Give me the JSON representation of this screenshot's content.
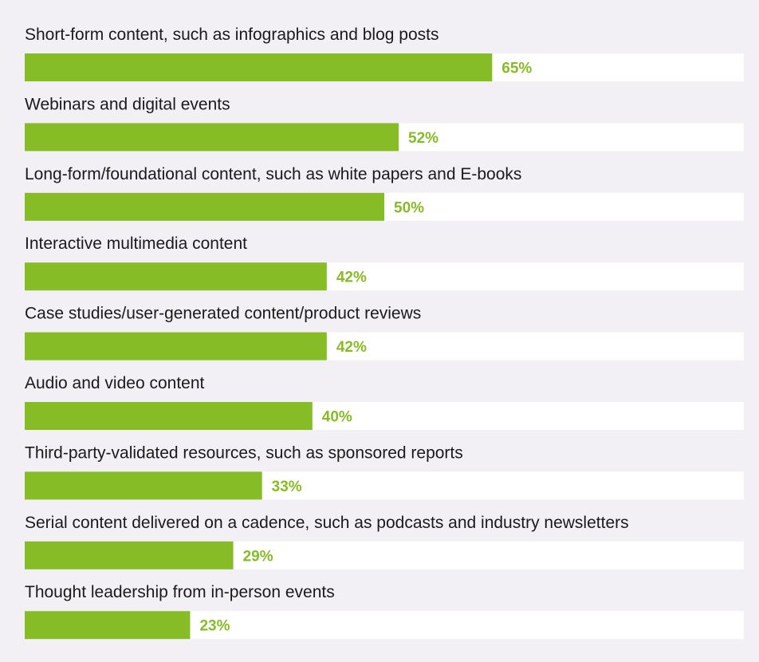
{
  "colors": {
    "background": "#f2f0f4",
    "track": "#ffffff",
    "bar": "#86bc25",
    "value_text": "#86bc25",
    "label_text": "#1a1a1a"
  },
  "chart_data": {
    "type": "bar",
    "orientation": "horizontal",
    "title": "",
    "xlabel": "",
    "ylabel": "",
    "xlim": [
      0,
      100
    ],
    "grid": false,
    "legend": "none",
    "value_suffix": "%",
    "categories": [
      "Short-form content, such as infographics and blog posts",
      "Webinars and digital events",
      "Long-form/foundational content, such as white papers and E-books",
      "Interactive multimedia content",
      "Case studies/user-generated content/product reviews",
      "Audio and video content",
      "Third-party-validated resources, such as sponsored reports",
      "Serial content delivered on a cadence, such as podcasts and industry newsletters",
      "Thought leadership from in-person events"
    ],
    "values": [
      65,
      52,
      50,
      42,
      42,
      40,
      33,
      29,
      23
    ]
  }
}
